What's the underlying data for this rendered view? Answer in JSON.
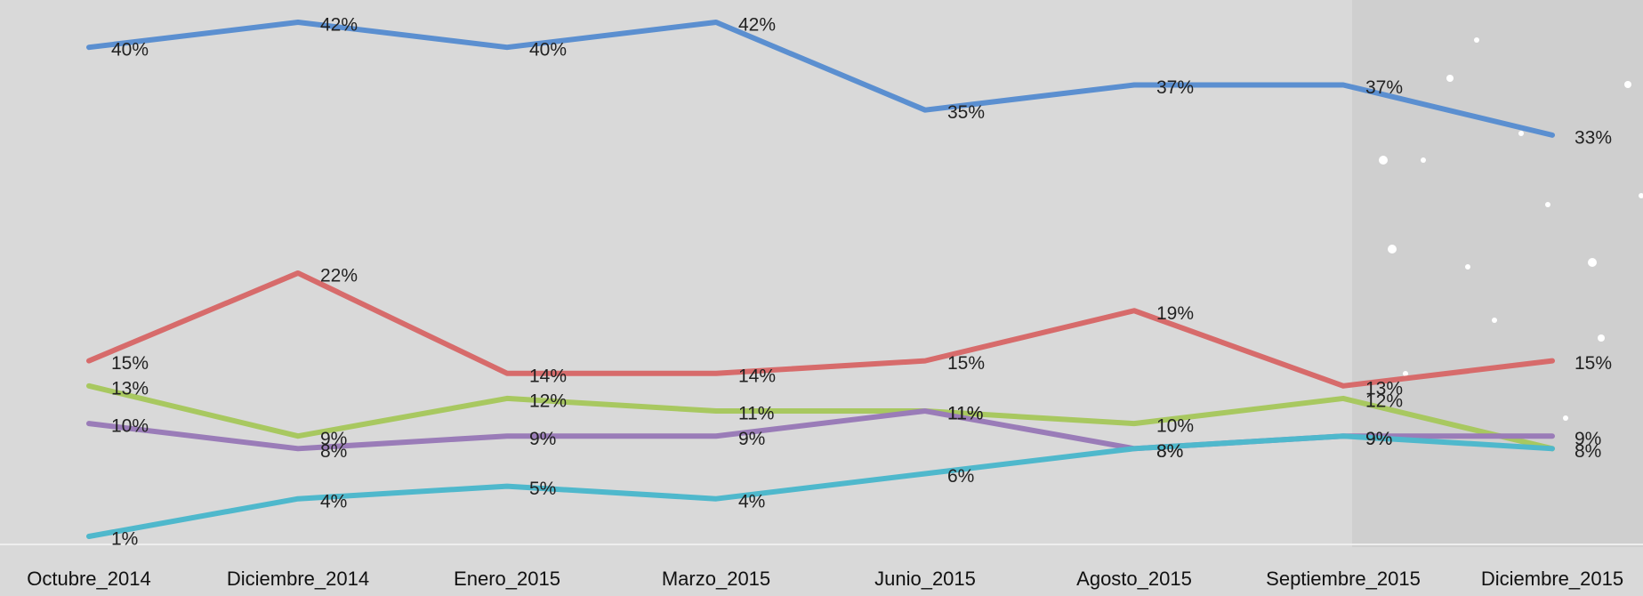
{
  "chart_data": {
    "type": "line",
    "categories": [
      "Octubre_2014",
      "Diciembre_2014",
      "Enero_2015",
      "Marzo_2015",
      "Junio_2015",
      "Agosto_2015",
      "Septiembre_2015",
      "Diciembre_2015"
    ],
    "series": [
      {
        "color": "#5b8fd0",
        "values": [
          40,
          42,
          40,
          42,
          35,
          37,
          37,
          33
        ],
        "value_labels": [
          "40%",
          "42%",
          "40%",
          "42%",
          "35%",
          "37%",
          "37%",
          "33%"
        ]
      },
      {
        "color": "#d76b6b",
        "values": [
          15,
          22,
          14,
          14,
          15,
          19,
          13,
          15
        ],
        "value_labels": [
          "15%",
          "22%",
          "14%",
          "14%",
          "15%",
          "19%",
          "13%",
          "15%"
        ]
      },
      {
        "color": "#a8c860",
        "values": [
          13,
          9,
          12,
          11,
          11,
          10,
          12,
          8
        ],
        "value_labels": [
          "13%",
          "9%",
          "12%",
          "11%",
          "11%",
          "10%",
          "12%",
          null
        ]
      },
      {
        "color": "#9a7cb8",
        "values": [
          10,
          8,
          9,
          9,
          11,
          8,
          9,
          9
        ],
        "value_labels": [
          "10%",
          "8%",
          "9%",
          "9%",
          "11%",
          "8%",
          "9%",
          "9%"
        ]
      },
      {
        "color": "#4fb8cc",
        "values": [
          1,
          4,
          5,
          4,
          6,
          8,
          9,
          8
        ],
        "value_labels": [
          "1%",
          "4%",
          "5%",
          "4%",
          "6%",
          "8%",
          "9%",
          "8%"
        ]
      }
    ]
  }
}
